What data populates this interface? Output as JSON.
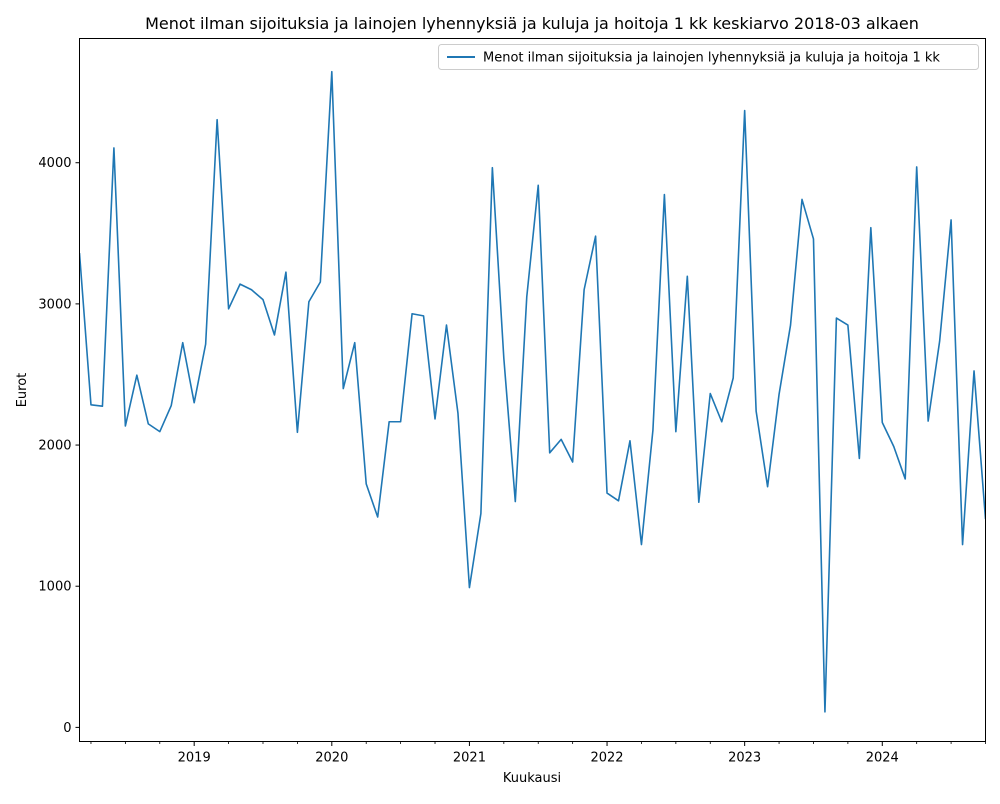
{
  "chart_data": {
    "type": "line",
    "title": "Menot ilman sijoituksia ja lainojen lyhennyksiä ja kuluja ja hoitoja 1 kk keskiarvo 2018-03 alkaen",
    "xlabel": "Kuukausi",
    "ylabel": "Eurot",
    "start_month": "2018-03",
    "xlim": [
      "2018-03",
      "2024-10"
    ],
    "ylim": [
      -100,
      4880
    ],
    "yticks": [
      0,
      1000,
      2000,
      3000,
      4000
    ],
    "ytick_labels": [
      "0",
      "1000",
      "2000",
      "3000",
      "4000"
    ],
    "xticks": [
      "2019-01",
      "2020-01",
      "2021-01",
      "2022-01",
      "2023-01",
      "2024-01"
    ],
    "xtick_labels": [
      "2019",
      "2020",
      "2021",
      "2022",
      "2023",
      "2024"
    ],
    "grid": false,
    "legend_position": "top-right",
    "color": "#1f77b4",
    "series": [
      {
        "name": "Menot ilman sijoituksia ja lainojen lyhennyksiä ja kuluja ja hoitoja 1 kk",
        "values": [
          3360,
          2285,
          2275,
          4105,
          2135,
          2495,
          2150,
          2095,
          2280,
          2725,
          2300,
          2715,
          4305,
          2965,
          3140,
          3100,
          3030,
          2780,
          3225,
          2090,
          3015,
          3155,
          4645,
          2400,
          2725,
          1725,
          1490,
          2165,
          2165,
          2930,
          2915,
          2185,
          2850,
          2225,
          990,
          1515,
          3965,
          2615,
          1600,
          3050,
          3840,
          1945,
          2040,
          1880,
          3100,
          3480,
          1660,
          1605,
          2030,
          1295,
          2105,
          3775,
          2095,
          3195,
          1595,
          2365,
          2165,
          2475,
          4370,
          2240,
          1705,
          2360,
          2850,
          3740,
          3460,
          110,
          2900,
          2850,
          1905,
          3540,
          2160,
          1990,
          1760,
          3970,
          2170,
          2735,
          3595,
          1295,
          2525,
          1475
        ]
      }
    ]
  }
}
